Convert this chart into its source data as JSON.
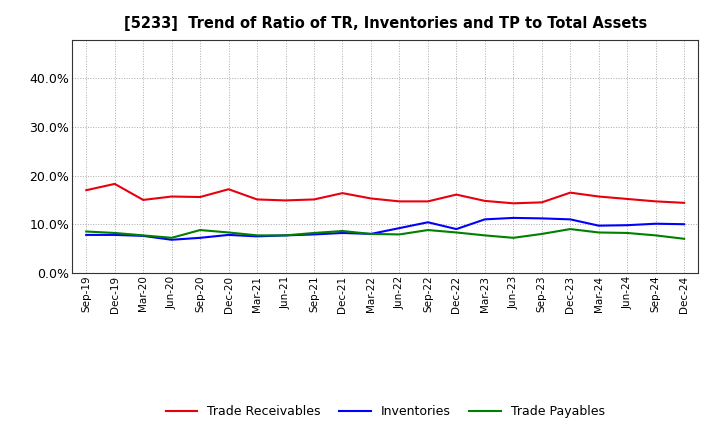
{
  "title": "[5233]  Trend of Ratio of TR, Inventories and TP to Total Assets",
  "x_labels": [
    "Sep-19",
    "Dec-19",
    "Mar-20",
    "Jun-20",
    "Sep-20",
    "Dec-20",
    "Mar-21",
    "Jun-21",
    "Sep-21",
    "Dec-21",
    "Mar-22",
    "Jun-22",
    "Sep-22",
    "Dec-22",
    "Mar-23",
    "Jun-23",
    "Sep-23",
    "Dec-23",
    "Mar-24",
    "Jun-24",
    "Sep-24",
    "Dec-24"
  ],
  "trade_receivables": [
    0.17,
    0.183,
    0.15,
    0.157,
    0.156,
    0.172,
    0.151,
    0.149,
    0.151,
    0.164,
    0.153,
    0.147,
    0.147,
    0.161,
    0.148,
    0.143,
    0.145,
    0.165,
    0.157,
    0.152,
    0.147,
    0.144
  ],
  "inventories": [
    0.078,
    0.078,
    0.076,
    0.068,
    0.072,
    0.078,
    0.075,
    0.077,
    0.079,
    0.082,
    0.08,
    0.092,
    0.104,
    0.09,
    0.11,
    0.113,
    0.112,
    0.11,
    0.097,
    0.098,
    0.101,
    0.1
  ],
  "trade_payables": [
    0.085,
    0.082,
    0.077,
    0.072,
    0.088,
    0.083,
    0.077,
    0.077,
    0.082,
    0.086,
    0.08,
    0.079,
    0.088,
    0.083,
    0.077,
    0.072,
    0.08,
    0.09,
    0.083,
    0.082,
    0.077,
    0.07
  ],
  "ylim": [
    0.0,
    0.48
  ],
  "yticks": [
    0.0,
    0.1,
    0.2,
    0.3,
    0.4
  ],
  "line_color_tr": "#e8000d",
  "line_color_inv": "#0000ff",
  "line_color_tp": "#008000",
  "background_color": "#ffffff",
  "grid_color": "#aaaaaa",
  "legend_labels": [
    "Trade Receivables",
    "Inventories",
    "Trade Payables"
  ]
}
